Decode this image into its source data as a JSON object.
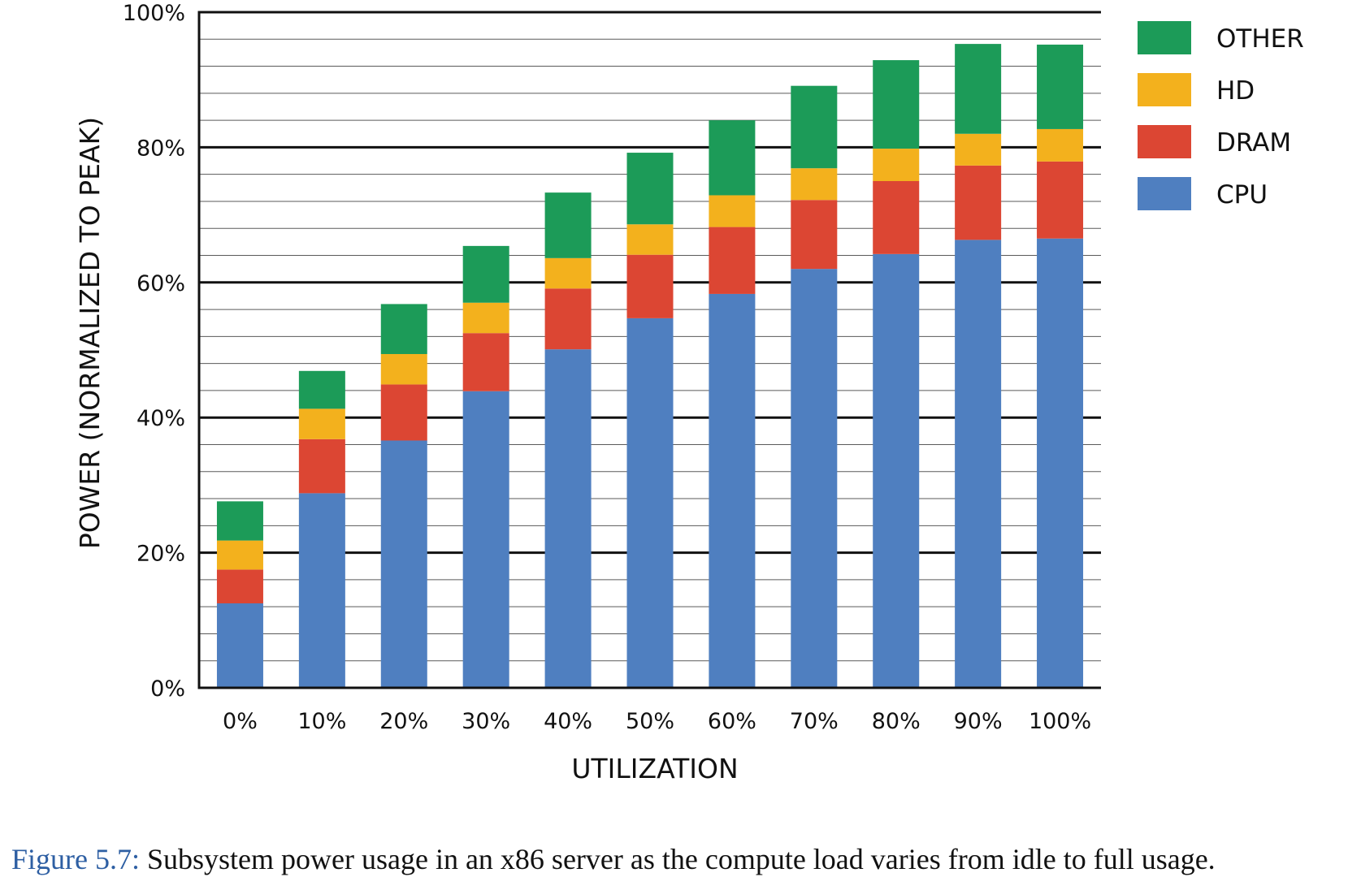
{
  "chart_data": {
    "type": "bar",
    "stacked": true,
    "xlabel": "UTILIZATION",
    "ylabel": "POWER (NORMALIZED TO PEAK)",
    "categories": [
      "0%",
      "10%",
      "20%",
      "30%",
      "40%",
      "50%",
      "60%",
      "70%",
      "80%",
      "90%",
      "100%"
    ],
    "ylim": [
      0,
      100
    ],
    "yticks": [
      0,
      20,
      40,
      60,
      80,
      100
    ],
    "ytick_labels": [
      "0%",
      "20%",
      "40%",
      "60%",
      "80%",
      "100%"
    ],
    "grid": true,
    "legend_position": "top-right",
    "series": [
      {
        "name": "CPU",
        "color": "#4f7fc0",
        "values": [
          12.5,
          28.8,
          36.6,
          43.9,
          50.1,
          54.7,
          58.3,
          62.0,
          64.2,
          66.3,
          66.5
        ]
      },
      {
        "name": "DRAM",
        "color": "#dc4633",
        "values": [
          5.0,
          8.0,
          8.3,
          8.6,
          9.0,
          9.4,
          9.9,
          10.2,
          10.8,
          11.0,
          11.4
        ]
      },
      {
        "name": "HD",
        "color": "#f3b11d",
        "values": [
          4.3,
          4.5,
          4.5,
          4.5,
          4.5,
          4.5,
          4.7,
          4.7,
          4.8,
          4.7,
          4.8
        ]
      },
      {
        "name": "OTHER",
        "color": "#1c9b58",
        "values": [
          5.8,
          5.6,
          7.4,
          8.4,
          9.7,
          10.6,
          11.1,
          12.2,
          13.1,
          13.3,
          12.5
        ]
      }
    ]
  },
  "caption": {
    "label": "Figure 5.7:",
    "text": " Subsystem power usage in an x86 server as the compute load varies from idle to full usage."
  }
}
